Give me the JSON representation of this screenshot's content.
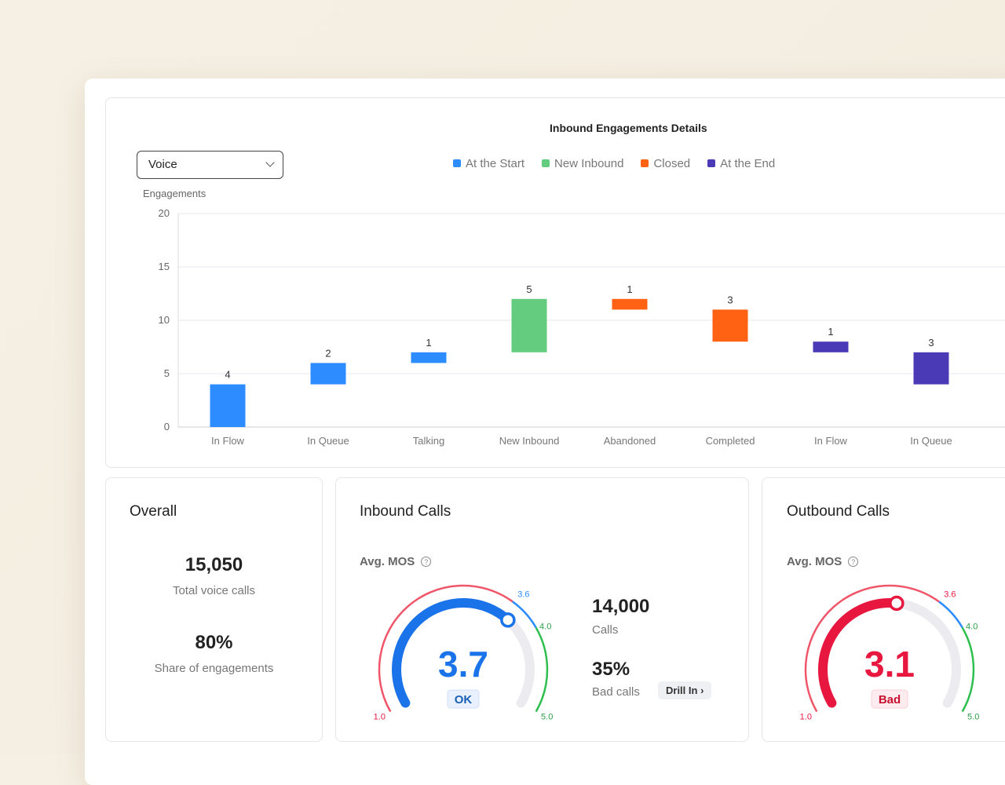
{
  "chart": {
    "title": "Inbound Engagements Details",
    "dropdown": "Voice",
    "ylabel": "Engagements",
    "legend": [
      {
        "label": "At the Start",
        "color": "#2d8cff"
      },
      {
        "label": "New Inbound",
        "color": "#63cc7f"
      },
      {
        "label": "Closed",
        "color": "#ff6212"
      },
      {
        "label": "At the End",
        "color": "#4a3ab5"
      }
    ]
  },
  "chart_data": {
    "type": "bar",
    "subtype": "waterfall",
    "ylim": [
      0,
      20
    ],
    "yticks": [
      0,
      5,
      10,
      15,
      20
    ],
    "grid": true,
    "categories": [
      "In Flow",
      "In Queue",
      "Talking",
      "New Inbound",
      "Abandoned",
      "Completed",
      "In Flow",
      "In Queue"
    ],
    "bars": [
      {
        "from": 0,
        "to": 4,
        "label": "4",
        "group": "At the Start"
      },
      {
        "from": 4,
        "to": 6,
        "label": "2",
        "group": "At the Start"
      },
      {
        "from": 6,
        "to": 7,
        "label": "1",
        "group": "At the Start"
      },
      {
        "from": 7,
        "to": 12,
        "label": "5",
        "group": "New Inbound"
      },
      {
        "from": 12,
        "to": 11,
        "label": "1",
        "group": "Closed"
      },
      {
        "from": 11,
        "to": 8,
        "label": "3",
        "group": "Closed"
      },
      {
        "from": 8,
        "to": 7,
        "label": "1",
        "group": "At the End"
      },
      {
        "from": 7,
        "to": 4,
        "label": "3",
        "group": "At the End"
      }
    ]
  },
  "overall": {
    "title": "Overall",
    "total": "15,050",
    "total_label": "Total voice calls",
    "share": "80%",
    "share_label": "Share of engagements"
  },
  "inbound": {
    "title": "Inbound Calls",
    "mos_label": "Avg. MOS",
    "value": "3.7",
    "status": "OK",
    "calls": "14,000",
    "calls_label": "Calls",
    "bad": "35%",
    "bad_label": "Bad calls",
    "drill": "Drill In",
    "color": "#1a73e8"
  },
  "outbound": {
    "title": "Outbound Calls",
    "mos_label": "Avg. MOS",
    "value": "3.1",
    "status": "Bad",
    "color": "#e8173f"
  },
  "gauge_ticks": {
    "min": "1.0",
    "t1": "3.6",
    "t2": "4.0",
    "max": "5.0"
  }
}
